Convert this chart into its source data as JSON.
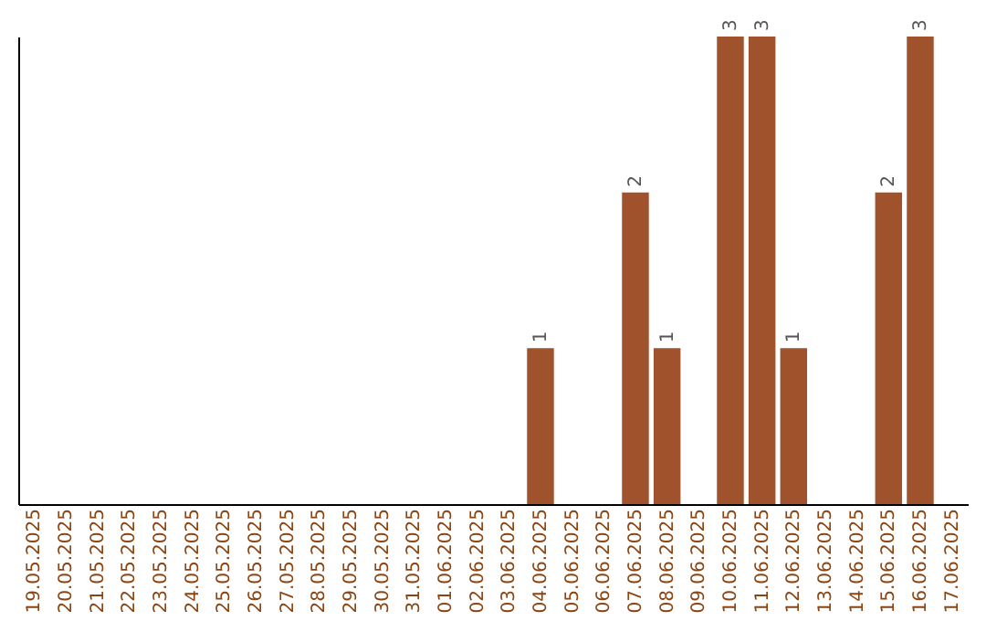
{
  "chart_data": {
    "type": "bar",
    "categories": [
      "19.05.2025",
      "20.05.2025",
      "21.05.2025",
      "22.05.2025",
      "23.05.2025",
      "24.05.2025",
      "25.05.2025",
      "26.05.2025",
      "27.05.2025",
      "28.05.2025",
      "29.05.2025",
      "30.05.2025",
      "31.05.2025",
      "01.06.2025",
      "02.06.2025",
      "03.06.2025",
      "04.06.2025",
      "05.06.2025",
      "06.06.2025",
      "07.06.2025",
      "08.06.2025",
      "09.06.2025",
      "10.06.2025",
      "11.06.2025",
      "12.06.2025",
      "13.06.2025",
      "14.06.2025",
      "15.06.2025",
      "16.06.2025",
      "17.06.2025"
    ],
    "values": [
      null,
      null,
      null,
      null,
      null,
      null,
      null,
      null,
      null,
      null,
      null,
      null,
      null,
      null,
      null,
      null,
      1,
      null,
      null,
      2,
      1,
      null,
      3,
      3,
      1,
      null,
      null,
      2,
      3,
      null
    ],
    "data_labels": true,
    "color": "#a0522d",
    "ylim": [
      0,
      3
    ],
    "tick_labels": "x",
    "grid": false
  }
}
